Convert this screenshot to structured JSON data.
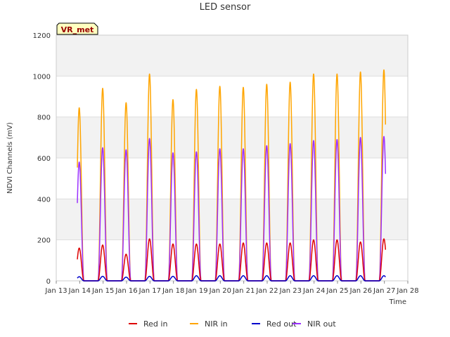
{
  "chart_data": {
    "type": "line",
    "title": "LED sensor",
    "xlabel": "Time",
    "ylabel": "NDVI Channels (mV)",
    "ylim": [
      0,
      1200
    ],
    "xlim": [
      13,
      28
    ],
    "yticks": [
      0,
      200,
      400,
      600,
      800,
      1000,
      1200
    ],
    "xticks": [
      {
        "value": 13,
        "label": "Jan 13"
      },
      {
        "value": 14,
        "label": "Jan 14"
      },
      {
        "value": 15,
        "label": "Jan 15"
      },
      {
        "value": 16,
        "label": "Jan 16"
      },
      {
        "value": 17,
        "label": "Jan 17"
      },
      {
        "value": 18,
        "label": "Jan 18"
      },
      {
        "value": 19,
        "label": "Jan 19"
      },
      {
        "value": 20,
        "label": "Jan 20"
      },
      {
        "value": 21,
        "label": "Jan 21"
      },
      {
        "value": 22,
        "label": "Jan 22"
      },
      {
        "value": 23,
        "label": "Jan 23"
      },
      {
        "value": 24,
        "label": "Jan 24"
      },
      {
        "value": 25,
        "label": "Jan 25"
      },
      {
        "value": 26,
        "label": "Jan 26"
      },
      {
        "value": 27,
        "label": "Jan 27"
      },
      {
        "value": 28,
        "label": "Jan 28"
      }
    ],
    "annotation": "VR_met",
    "legend_position": "bottom",
    "day_centers": [
      13.98,
      14.98,
      15.98,
      16.98,
      17.98,
      18.98,
      19.98,
      20.98,
      21.98,
      22.98,
      23.98,
      24.98,
      25.98,
      26.98
    ],
    "series": [
      {
        "name": "Red in",
        "color": "#dd0000",
        "daily_peaks": [
          160,
          175,
          130,
          205,
          180,
          180,
          180,
          185,
          185,
          185,
          200,
          200,
          190,
          205
        ]
      },
      {
        "name": "NIR in",
        "color": "#ffa500",
        "daily_peaks": [
          845,
          940,
          870,
          1010,
          885,
          935,
          950,
          945,
          960,
          970,
          1010,
          1010,
          1020,
          1030
        ]
      },
      {
        "name": "Red out",
        "color": "#0000cc",
        "daily_peaks": [
          20,
          22,
          18,
          22,
          22,
          25,
          25,
          25,
          25,
          25,
          25,
          25,
          25,
          25
        ]
      },
      {
        "name": "NIR out",
        "color": "#9b30ff",
        "daily_peaks": [
          580,
          650,
          640,
          695,
          625,
          630,
          645,
          645,
          660,
          670,
          685,
          690,
          700,
          705
        ]
      }
    ]
  }
}
